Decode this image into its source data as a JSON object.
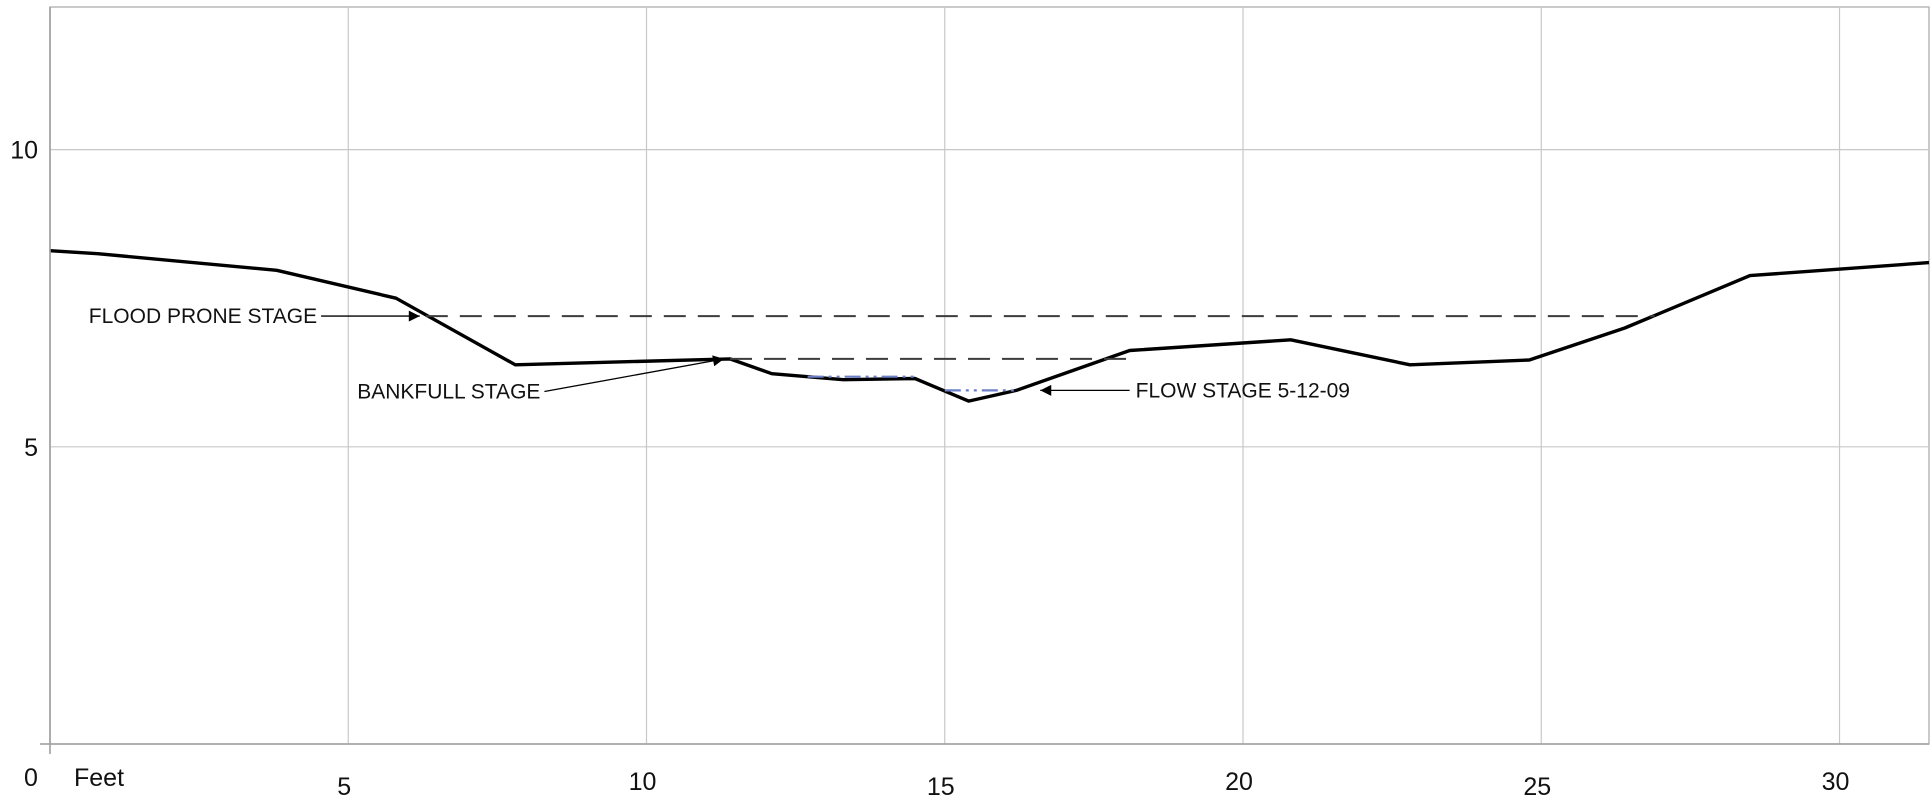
{
  "chart_data": {
    "type": "line",
    "title": "",
    "xlabel": "Feet",
    "ylabel": "",
    "xlim": [
      0,
      31.5
    ],
    "ylim": [
      0,
      12.4
    ],
    "x_ticks": [
      5,
      10,
      15,
      20,
      25,
      30
    ],
    "y_ticks": [
      5,
      10
    ],
    "origin_label": "0",
    "grid": true,
    "series": [
      {
        "kind": "profile",
        "color": "#000000",
        "style": "solid",
        "x": [
          0,
          0.8,
          3.8,
          5.8,
          7.8,
          11.4,
          12.1,
          13.3,
          14.5,
          15.4,
          16.2,
          18.1,
          20.8,
          22.8,
          24.8,
          26.4,
          28.5,
          31.5
        ],
        "y": [
          8.3,
          8.25,
          7.97,
          7.5,
          6.38,
          6.48,
          6.23,
          6.13,
          6.15,
          5.77,
          5.95,
          6.62,
          6.8,
          6.38,
          6.46,
          7.0,
          7.88,
          8.1
        ]
      },
      {
        "kind": "flood_prone",
        "color": "#3c3c3c",
        "style": "dashed",
        "x": [
          6.3,
          26.9
        ],
        "y": [
          7.2,
          7.2
        ]
      },
      {
        "kind": "bankfull",
        "color": "#3c3c3c",
        "style": "dashed",
        "x": [
          11.4,
          18.1
        ],
        "y": [
          6.48,
          6.48
        ]
      },
      {
        "kind": "flow_stage",
        "color": "#6d7fc9",
        "style": "dashdot",
        "segments": [
          {
            "x": [
              12.7,
              14.5
            ],
            "y": [
              6.18,
              6.18
            ]
          },
          {
            "x": [
              15.0,
              16.2
            ],
            "y": [
              5.95,
              5.95
            ]
          }
        ]
      }
    ],
    "annotations": [
      {
        "text": "FLOOD PRONE STAGE",
        "target": [
          6.3,
          7.2
        ],
        "side": "left",
        "text_at": [
          0.65,
          7.2
        ]
      },
      {
        "text": "BANKFULL STAGE",
        "target": [
          11.4,
          6.48
        ],
        "side": "left",
        "text_at": [
          5.15,
          5.93
        ]
      },
      {
        "text": "FLOW STAGE 5-12-09",
        "target": [
          16.5,
          5.95
        ],
        "side": "right",
        "text_at": [
          18.2,
          5.95
        ]
      }
    ]
  }
}
